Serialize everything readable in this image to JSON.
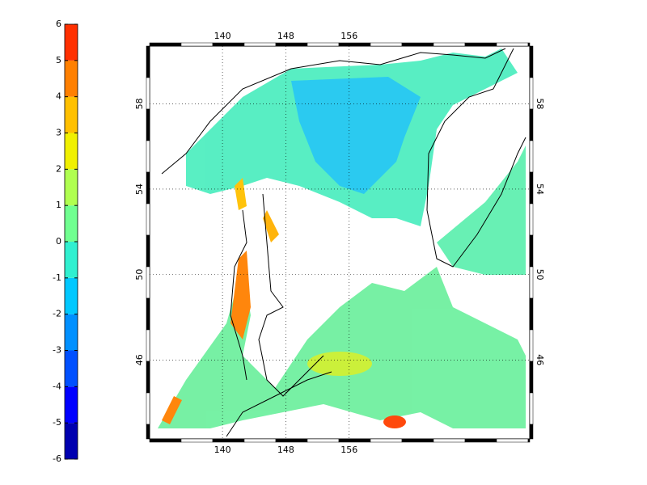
{
  "colorbar": {
    "ticks": [
      -6,
      -5,
      -4,
      -3,
      -2,
      -1,
      0,
      1,
      2,
      3,
      4,
      5,
      6
    ],
    "colors": [
      "#0000b0",
      "#0000ff",
      "#0050ff",
      "#0090ff",
      "#00c8ff",
      "#30f0d0",
      "#70ff90",
      "#b0ff50",
      "#f0f000",
      "#ffc000",
      "#ff8000",
      "#ff3000",
      "#d00000"
    ]
  },
  "map": {
    "xlim": [
      130.8,
      178.8
    ],
    "ylim": [
      42.3,
      60.7
    ],
    "xticks": [
      140,
      148,
      156
    ],
    "yticks": [
      46,
      50,
      54,
      58
    ],
    "grid": true
  }
}
